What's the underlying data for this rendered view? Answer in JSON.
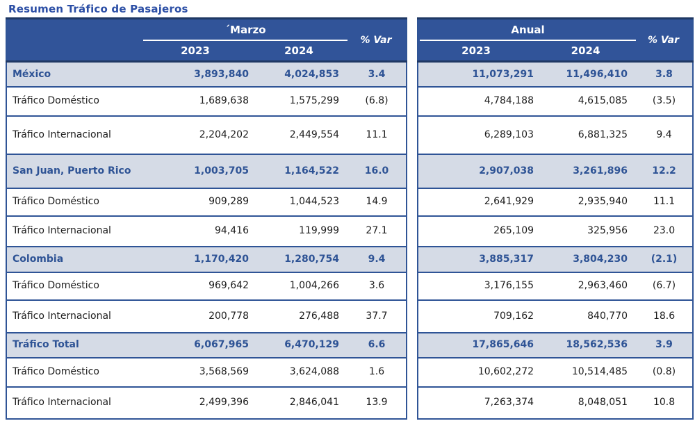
{
  "title": "Resumen Tráfico de Pasajeros",
  "colors": {
    "header_bg": "#315499",
    "highlight_row_bg": "#D5DBE6",
    "border_blue": "#2F5496",
    "border_dark": "#1F3864",
    "accent_text": "#2E5395",
    "title_text": "#2B4EA5"
  },
  "headers": {
    "marzo": "´Marzo",
    "anual": "Anual",
    "var": "% Var",
    "y2023": "2023",
    "y2024": "2024"
  },
  "rows": [
    {
      "label": "México",
      "highlight": true,
      "marzo_2023": "3,893,840",
      "marzo_2024": "4,024,853",
      "marzo_var": "3.4",
      "anual_2023": "11,073,291",
      "anual_2024": "11,496,410",
      "anual_var": "3.8"
    },
    {
      "label": "Tráfico Doméstico",
      "highlight": false,
      "marzo_2023": "1,689,638",
      "marzo_2024": "1,575,299",
      "marzo_var": "(6.8)",
      "anual_2023": "4,784,188",
      "anual_2024": "4,615,085",
      "anual_var": "(3.5)"
    },
    {
      "label": "Tráfico Internacional",
      "highlight": false,
      "marzo_2023": "2,204,202",
      "marzo_2024": "2,449,554",
      "marzo_var": "11.1",
      "anual_2023": "6,289,103",
      "anual_2024": "6,881,325",
      "anual_var": "9.4"
    },
    {
      "label": "San Juan, Puerto Rico",
      "highlight": true,
      "marzo_2023": "1,003,705",
      "marzo_2024": "1,164,522",
      "marzo_var": "16.0",
      "anual_2023": "2,907,038",
      "anual_2024": "3,261,896",
      "anual_var": "12.2"
    },
    {
      "label": "Tráfico Doméstico",
      "highlight": false,
      "marzo_2023": "909,289",
      "marzo_2024": "1,044,523",
      "marzo_var": "14.9",
      "anual_2023": "2,641,929",
      "anual_2024": "2,935,940",
      "anual_var": "11.1"
    },
    {
      "label": "Tráfico Internacional",
      "highlight": false,
      "marzo_2023": "94,416",
      "marzo_2024": "119,999",
      "marzo_var": "27.1",
      "anual_2023": "265,109",
      "anual_2024": "325,956",
      "anual_var": "23.0"
    },
    {
      "label": "Colombia",
      "highlight": true,
      "marzo_2023": "1,170,420",
      "marzo_2024": "1,280,754",
      "marzo_var": "9.4",
      "anual_2023": "3,885,317",
      "anual_2024": "3,804,230",
      "anual_var": "(2.1)"
    },
    {
      "label": "Tráfico Doméstico",
      "highlight": false,
      "marzo_2023": "969,642",
      "marzo_2024": "1,004,266",
      "marzo_var": "3.6",
      "anual_2023": "3,176,155",
      "anual_2024": "2,963,460",
      "anual_var": "(6.7)"
    },
    {
      "label": "Tráfico Internacional",
      "highlight": false,
      "marzo_2023": "200,778",
      "marzo_2024": "276,488",
      "marzo_var": "37.7",
      "anual_2023": "709,162",
      "anual_2024": "840,770",
      "anual_var": "18.6"
    },
    {
      "label": "Tráfico Total",
      "highlight": true,
      "marzo_2023": "6,067,965",
      "marzo_2024": "6,470,129",
      "marzo_var": "6.6",
      "anual_2023": "17,865,646",
      "anual_2024": "18,562,536",
      "anual_var": "3.9"
    },
    {
      "label": "Tráfico Doméstico",
      "highlight": false,
      "marzo_2023": "3,568,569",
      "marzo_2024": "3,624,088",
      "marzo_var": "1.6",
      "anual_2023": "10,602,272",
      "anual_2024": "10,514,485",
      "anual_var": "(0.8)"
    },
    {
      "label": "Tráfico Internacional",
      "highlight": false,
      "marzo_2023": "2,499,396",
      "marzo_2024": "2,846,041",
      "marzo_var": "13.9",
      "anual_2023": "7,263,374",
      "anual_2024": "8,048,051",
      "anual_var": "10.8"
    }
  ]
}
